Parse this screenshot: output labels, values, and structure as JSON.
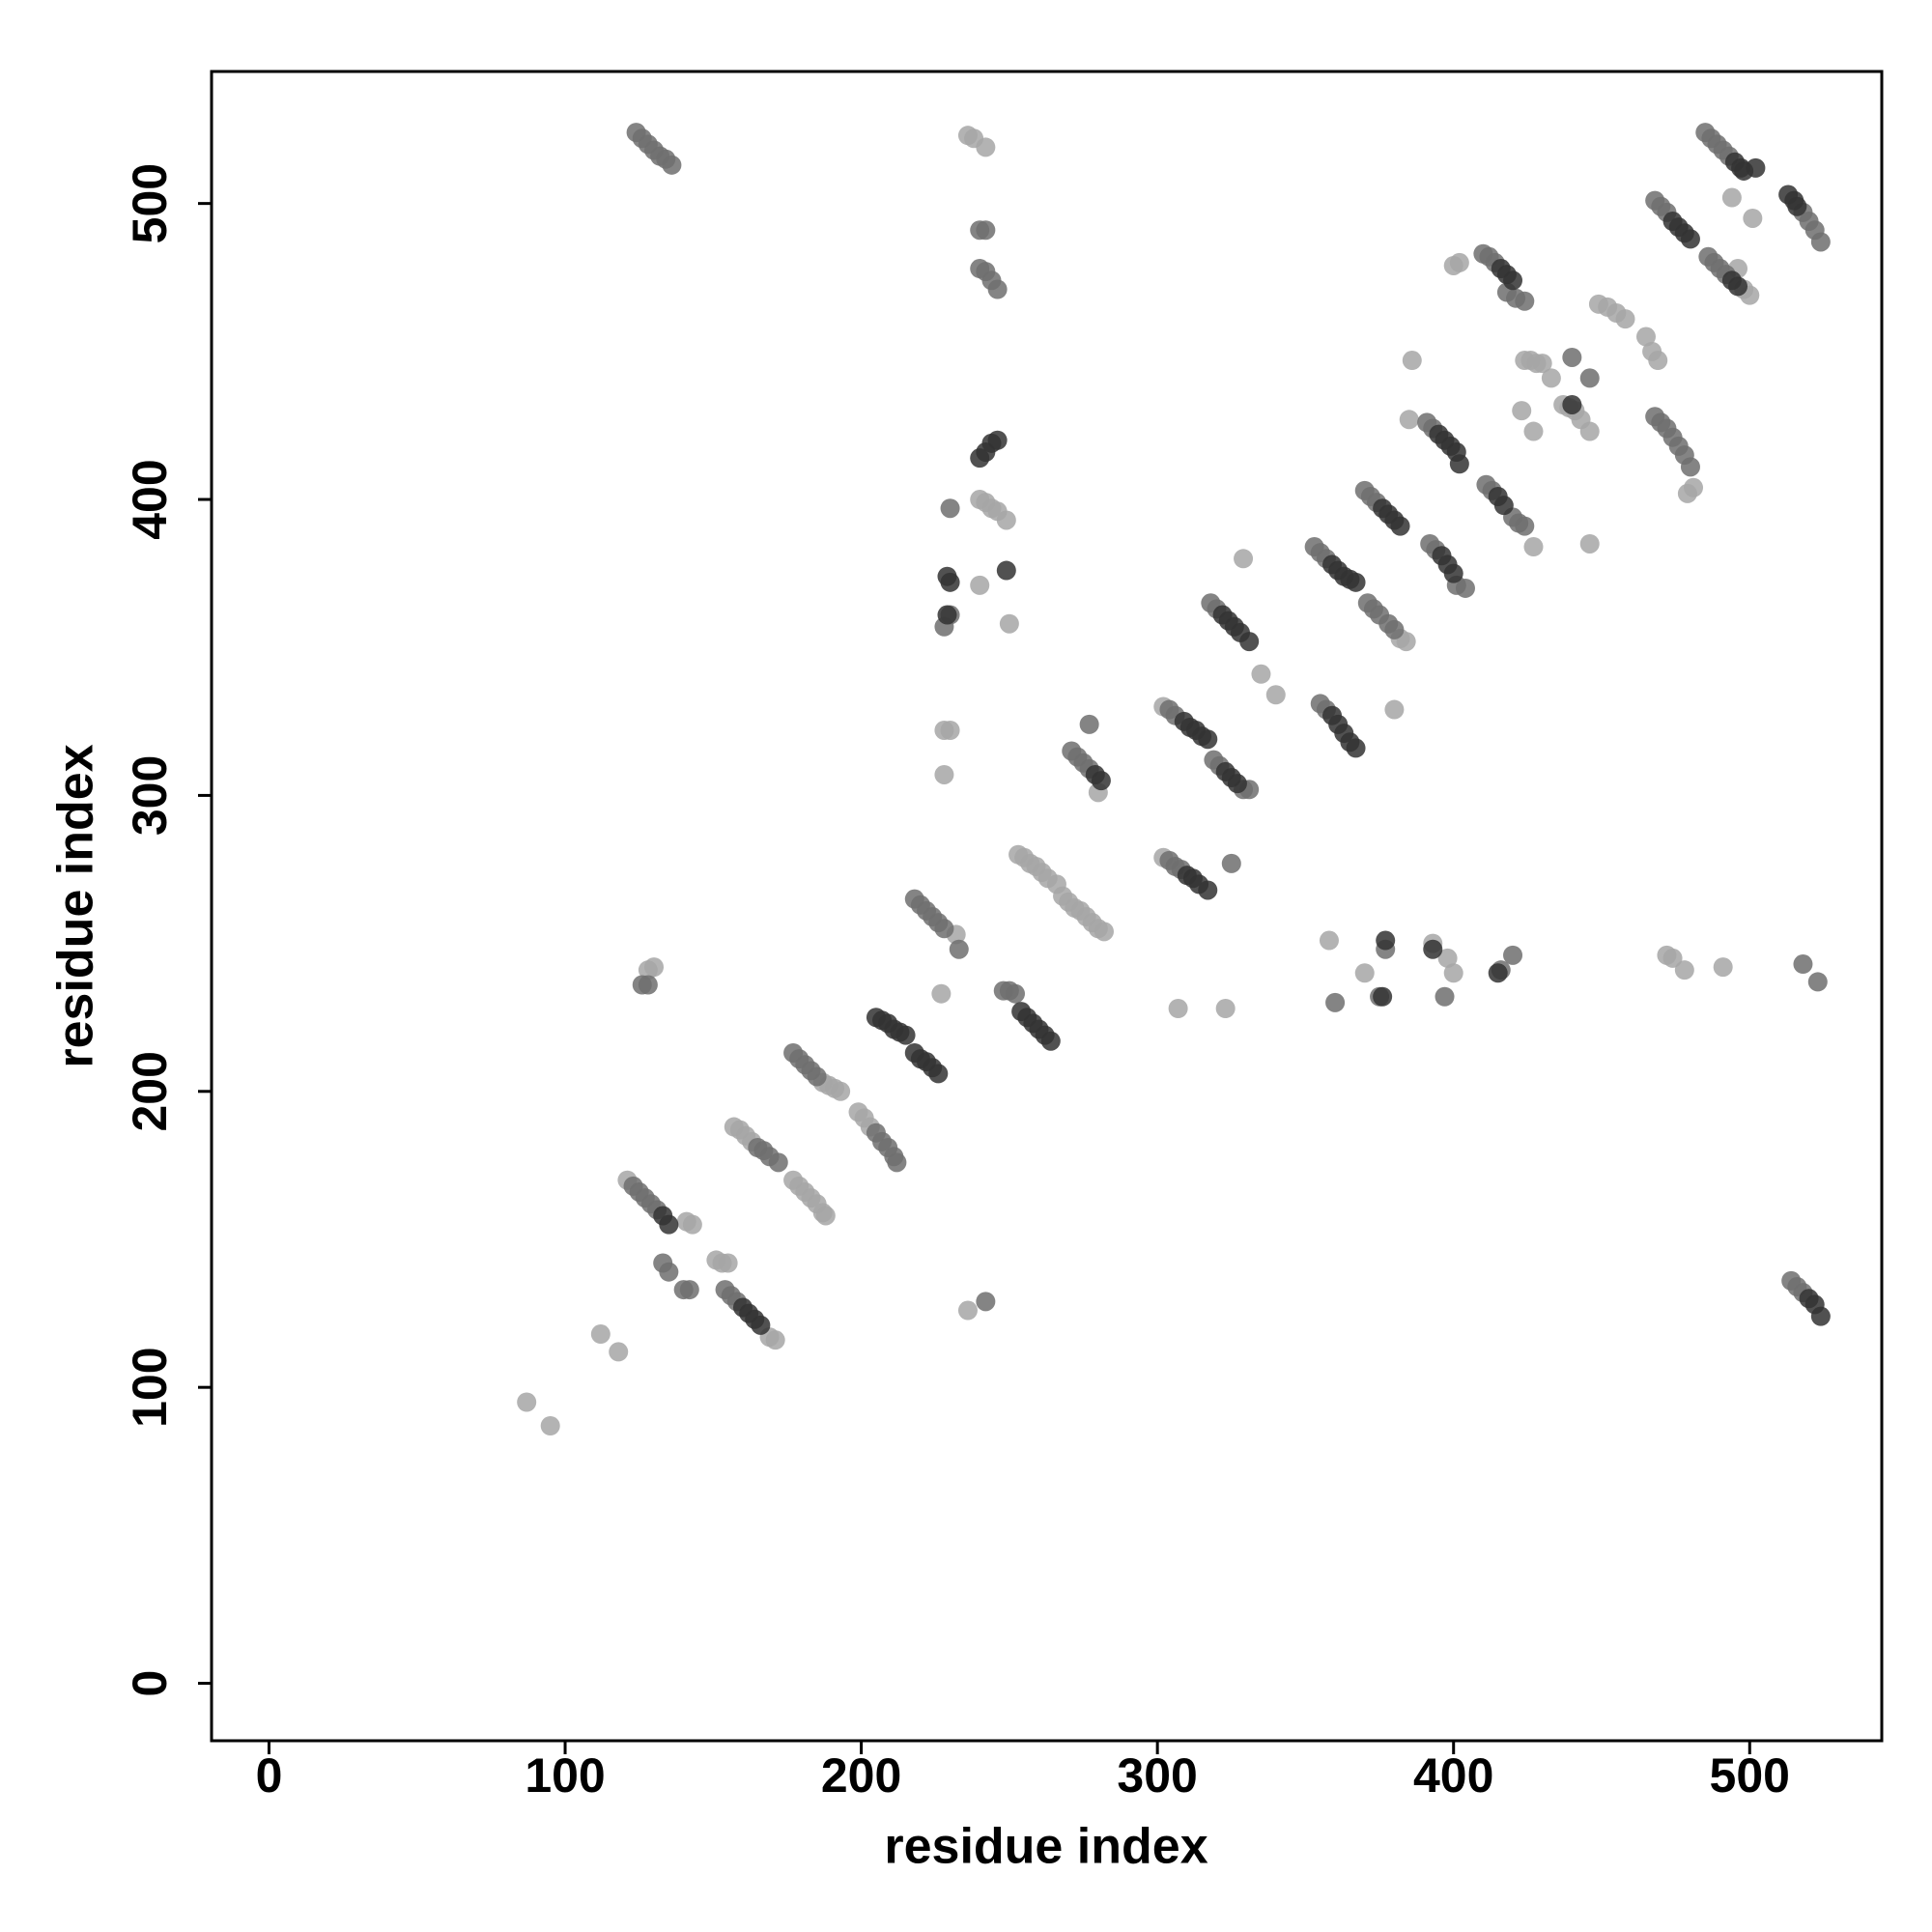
{
  "chart_data": {
    "type": "scatter",
    "xlabel": "residue index",
    "ylabel": "residue index",
    "xlim": [
      -19.4,
      544.6
    ],
    "ylim": [
      -19.4,
      544.6
    ],
    "xticks": [
      0,
      100,
      200,
      300,
      400,
      500
    ],
    "yticks": [
      0,
      100,
      200,
      300,
      400,
      500
    ],
    "grid": false,
    "series": [
      {
        "color": "#a6a6a6",
        "x": [
          236,
          238,
          242,
          240,
          242,
          244,
          246,
          249,
          228,
          230,
          228,
          250,
          240,
          177,
          179,
          181,
          183,
          185,
          187,
          188,
          253,
          255,
          257,
          259,
          261,
          263,
          266,
          268,
          270,
          272,
          274,
          276,
          278,
          280,
          282,
          187,
          189,
          191,
          193,
          199,
          201,
          203,
          157,
          159,
          161,
          163,
          151,
          153,
          155,
          143,
          141,
          87,
          95,
          112,
          118,
          236,
          128,
          130,
          232,
          227,
          307,
          323,
          329,
          335,
          340,
          380,
          386,
          385,
          400,
          402,
          427,
          427,
          423,
          424,
          426,
          428,
          430,
          433,
          437,
          439,
          441,
          443,
          446,
          449,
          452,
          455,
          458,
          446,
          465,
          467,
          469,
          479,
          481,
          494,
          501,
          496,
          498,
          500,
          358,
          370,
          393,
          398,
          400,
          472,
          474,
          478,
          491,
          121,
          169,
          171,
          280,
          302,
          302,
          382,
          384
        ],
        "y": [
          523,
          522,
          519,
          400,
          399,
          397,
          396,
          393,
          322,
          322,
          307,
          358,
          371,
          170,
          168,
          166,
          164,
          162,
          159,
          158,
          280,
          279,
          277,
          276,
          274,
          272,
          270,
          266,
          264,
          262,
          261,
          259,
          257,
          255,
          254,
          203,
          202,
          201,
          200,
          193,
          191,
          188,
          188,
          187,
          185,
          183,
          143,
          142,
          142,
          155,
          156,
          95,
          87,
          118,
          112,
          126,
          241,
          242,
          253,
          233,
          228,
          228,
          380,
          341,
          334,
          329,
          447,
          427,
          479,
          480,
          384,
          423,
          430,
          447,
          447,
          446,
          446,
          441,
          432,
          431,
          430,
          427,
          423,
          466,
          465,
          463,
          461,
          385,
          455,
          450,
          447,
          402,
          404,
          502,
          495,
          478,
          471,
          469,
          251,
          240,
          250,
          245,
          240,
          246,
          245,
          241,
          242,
          170,
          117,
          116,
          301,
          330,
          279,
          353,
          352
        ]
      },
      {
        "color": "#6e6e6e",
        "x": [
          124,
          126,
          128,
          130,
          132,
          134,
          136,
          240,
          242,
          240,
          242,
          244,
          246,
          230,
          228,
          230,
          123,
          125,
          127,
          129,
          131,
          126,
          128,
          133,
          135,
          142,
          140,
          154,
          156,
          158,
          165,
          167,
          169,
          172,
          177,
          179,
          181,
          183,
          185,
          205,
          207,
          209,
          211,
          212,
          218,
          220,
          222,
          224,
          226,
          228,
          233,
          248,
          250,
          252,
          271,
          273,
          275,
          277,
          304,
          306,
          304,
          306,
          308,
          318,
          320,
          319,
          321,
          329,
          331,
          353,
          355,
          357,
          355,
          357,
          375,
          377,
          370,
          372,
          374,
          371,
          373,
          375,
          378,
          380,
          391,
          393,
          392,
          394,
          401,
          404,
          410,
          412,
          414,
          411,
          413,
          420,
          422,
          424,
          418,
          421,
          424,
          440,
          446,
          468,
          470,
          472,
          468,
          470,
          472,
          474,
          476,
          478,
          480,
          485,
          487,
          489,
          491,
          493,
          486,
          488,
          490,
          492,
          518,
          520,
          522,
          524,
          514,
          516,
          518,
          360,
          397,
          416,
          420,
          518,
          523,
          242,
          277,
          325
        ],
        "y": [
          524,
          522,
          520,
          518,
          516,
          515,
          513,
          491,
          491,
          478,
          477,
          474,
          471,
          361,
          357,
          397,
          168,
          166,
          164,
          162,
          160,
          236,
          236,
          142,
          139,
          133,
          133,
          133,
          131,
          129,
          181,
          180,
          178,
          176,
          213,
          211,
          209,
          207,
          205,
          186,
          183,
          181,
          178,
          176,
          265,
          263,
          261,
          259,
          257,
          255,
          248,
          234,
          234,
          233,
          315,
          313,
          311,
          309,
          329,
          327,
          278,
          276,
          275,
          365,
          363,
          312,
          310,
          302,
          302,
          384,
          382,
          380,
          331,
          329,
          232,
          248,
          403,
          401,
          399,
          365,
          363,
          361,
          358,
          356,
          426,
          424,
          385,
          383,
          371,
          370,
          483,
          482,
          480,
          405,
          403,
          394,
          392,
          391,
          470,
          468,
          467,
          448,
          441,
          501,
          499,
          497,
          428,
          426,
          424,
          421,
          418,
          415,
          411,
          524,
          522,
          520,
          518,
          516,
          482,
          480,
          478,
          476,
          497,
          494,
          491,
          487,
          136,
          134,
          132,
          230,
          232,
          241,
          246,
          243,
          237,
          129,
          324,
          277
        ]
      },
      {
        "color": "#333333",
        "x": [
          240,
          242,
          244,
          246,
          229,
          230,
          229,
          249,
          133,
          135,
          160,
          162,
          164,
          166,
          205,
          207,
          209,
          211,
          213,
          215,
          218,
          220,
          222,
          224,
          226,
          254,
          256,
          258,
          260,
          262,
          264,
          279,
          281,
          309,
          311,
          313,
          315,
          317,
          310,
          312,
          314,
          317,
          322,
          324,
          326,
          328,
          331,
          323,
          325,
          327,
          359,
          361,
          363,
          365,
          367,
          359,
          361,
          363,
          365,
          367,
          377,
          376,
          376,
          378,
          380,
          382,
          395,
          397,
          399,
          401,
          402,
          396,
          398,
          400,
          416,
          418,
          420,
          415,
          417,
          440,
          474,
          476,
          478,
          480,
          495,
          497,
          498,
          502,
          494,
          496,
          513,
          515,
          516,
          520,
          522,
          524,
          415,
          393
        ],
        "y": [
          414,
          416,
          419,
          420,
          374,
          372,
          361,
          376,
          158,
          155,
          127,
          125,
          123,
          121,
          225,
          224,
          223,
          221,
          220,
          219,
          213,
          211,
          210,
          208,
          206,
          227,
          225,
          223,
          221,
          219,
          217,
          307,
          305,
          325,
          323,
          322,
          320,
          319,
          273,
          272,
          270,
          268,
          361,
          359,
          357,
          355,
          352,
          308,
          306,
          304,
          378,
          376,
          374,
          373,
          372,
          327,
          324,
          321,
          318,
          316,
          251,
          232,
          397,
          395,
          393,
          391,
          422,
          420,
          418,
          416,
          412,
          381,
          378,
          375,
          478,
          476,
          474,
          401,
          398,
          432,
          494,
          492,
          490,
          488,
          514,
          512,
          511,
          512,
          474,
          472,
          503,
          501,
          499,
          130,
          128,
          124,
          240,
          248
        ]
      }
    ]
  }
}
